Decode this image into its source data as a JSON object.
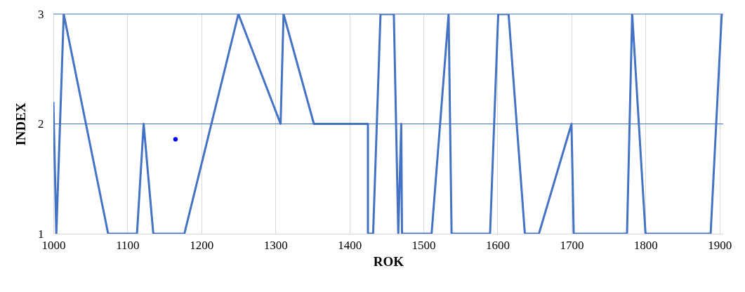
{
  "chart_data": {
    "type": "line",
    "xlabel": "ROK",
    "ylabel": "INDEX",
    "xlim": [
      1000,
      1905
    ],
    "xticks": [
      1000,
      1100,
      1200,
      1300,
      1400,
      1500,
      1600,
      1700,
      1800,
      1900
    ],
    "ylim": [
      1,
      3
    ],
    "yticks": [
      1,
      2,
      3
    ],
    "grid": "x",
    "marker": "none",
    "line_style": "solid",
    "series": [
      {
        "color": "#4472c4",
        "x": [
          1000,
          1004,
          1014,
          1074,
          1113,
          1122,
          1135,
          1177,
          1250,
          1307,
          1311,
          1352,
          1425,
          1425,
          1432,
          1442,
          1460,
          1466,
          1470,
          1471,
          1511,
          1534,
          1538,
          1590,
          1601,
          1615,
          1637,
          1656,
          1700,
          1703,
          1775,
          1782,
          1800,
          1888,
          1903
        ],
        "values": [
          2.2,
          1,
          3,
          1,
          1,
          2,
          1,
          1,
          3,
          2,
          3,
          2,
          2,
          1,
          1,
          3,
          3,
          1,
          2,
          1,
          1,
          3,
          1,
          1,
          3,
          3,
          1,
          1,
          2,
          1,
          1,
          3,
          1,
          1,
          3
        ]
      },
      {
        "type": "scatter",
        "color": "#0000ff",
        "x": [
          1165
        ],
        "values": [
          1.86
        ]
      }
    ],
    "ref_lines": [
      {
        "axis": "y",
        "value": 2,
        "color": "#4472c4"
      },
      {
        "axis": "y",
        "value": 3,
        "color": "#4472c4"
      }
    ]
  }
}
